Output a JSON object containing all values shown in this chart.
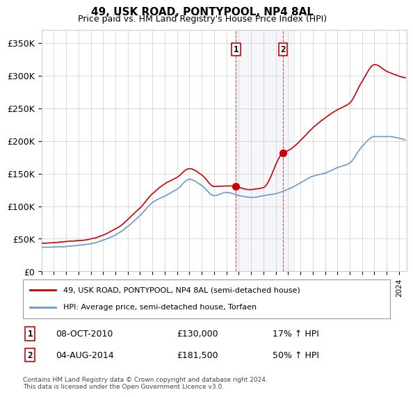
{
  "title": "49, USK ROAD, PONTYPOOL, NP4 8AL",
  "subtitle": "Price paid vs. HM Land Registry's House Price Index (HPI)",
  "ylabel_ticks": [
    "£0",
    "£50K",
    "£100K",
    "£150K",
    "£200K",
    "£250K",
    "£300K",
    "£350K"
  ],
  "ylim": [
    0,
    370000
  ],
  "xlim_start": 1995,
  "xlim_end": 2024.5,
  "hpi_color": "#6699cc",
  "price_color": "#cc0000",
  "transaction1": {
    "date": "08-OCT-2010",
    "price": 130000,
    "label": "1",
    "hpi_pct": "17%"
  },
  "transaction2": {
    "date": "04-AUG-2014",
    "price": 181500,
    "label": "2",
    "hpi_pct": "50%"
  },
  "legend_line1": "49, USK ROAD, PONTYPOOL, NP4 8AL (semi-detached house)",
  "legend_line2": "HPI: Average price, semi-detached house, Torfaen",
  "footnote": "Contains HM Land Registry data © Crown copyright and database right 2024.\nThis data is licensed under the Open Government Licence v3.0.",
  "transaction1_x": 2010.77,
  "transaction2_x": 2014.58,
  "shaded_x1": 2010.77,
  "shaded_x2": 2015.5
}
